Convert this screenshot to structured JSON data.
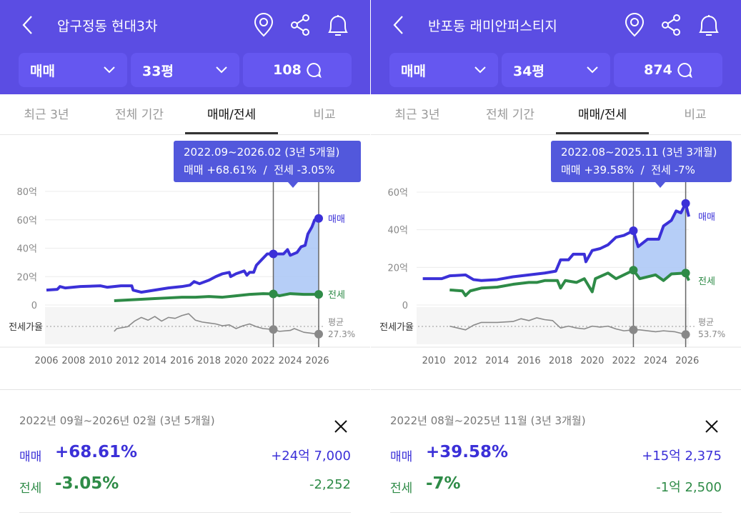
{
  "colors": {
    "header": "#5b4de3",
    "sale": "#3b30d8",
    "jeonse": "#2e8b47",
    "ratio": "#8a8a8a",
    "selection": "#a9c5f6"
  },
  "panels": [
    {
      "title": "압구정동 현대3차",
      "icons": [
        "location-pin-icon",
        "share-icon",
        "bell-icon"
      ],
      "filters": {
        "type": "매매",
        "size": "33평",
        "comments": "108"
      },
      "tabs": [
        "최근 3년",
        "전체 기간",
        "매매/전세",
        "비교"
      ],
      "active_tab": 2,
      "tooltip": {
        "range": "2022.09~2026.02 (3년 5개월)",
        "change": "매매 +68.61%  /  전세 -3.05%"
      },
      "summary": {
        "range": "2022년 09월~2026년 02월 (3년 5개월)",
        "sale_label": "매매",
        "sale_pct": "+68.61%",
        "sale_amount": "+24억 7,000",
        "jeonse_label": "전세",
        "jeonse_pct": "-3.05%",
        "jeonse_amount": "-2,252"
      },
      "chart_data": {
        "type": "line",
        "xlim": [
          2006,
          2026.1
        ],
        "ylim": [
          0,
          80
        ],
        "yticks": [
          "0",
          "20억",
          "40억",
          "60억",
          "80억"
        ],
        "yvals": [
          0,
          20,
          40,
          60,
          80
        ],
        "xticks": [
          "2006",
          "2008",
          "2010",
          "2012",
          "2014",
          "2016",
          "2018",
          "2020",
          "2022",
          "2024",
          "2026"
        ],
        "series": [
          {
            "name": "매매",
            "points": [
              [
                2006,
                10.5
              ],
              [
                2006.8,
                11
              ],
              [
                2007,
                13
              ],
              [
                2007.4,
                12
              ],
              [
                2008.5,
                13
              ],
              [
                2010,
                13.5
              ],
              [
                2010.5,
                12.5
              ],
              [
                2011,
                13
              ],
              [
                2011.5,
                13.5
              ],
              [
                2012.3,
                13.5
              ],
              [
                2012.4,
                10.5
              ],
              [
                2013,
                9
              ],
              [
                2014,
                10.5
              ],
              [
                2015,
                12
              ],
              [
                2016,
                13
              ],
              [
                2016.6,
                14
              ],
              [
                2016.9,
                16.5
              ],
              [
                2017.3,
                15
              ],
              [
                2018,
                17.5
              ],
              [
                2018.5,
                20
              ],
              [
                2019,
                22
              ],
              [
                2019.5,
                23
              ],
              [
                2019.6,
                20
              ],
              [
                2020,
                22
              ],
              [
                2020.6,
                24
              ],
              [
                2020.8,
                21
              ],
              [
                2021,
                23
              ],
              [
                2021.3,
                23
              ],
              [
                2021.5,
                28
              ],
              [
                2021.9,
                32
              ],
              [
                2022.3,
                36
              ],
              [
                2022.75,
                36
              ],
              [
                2023.5,
                36
              ],
              [
                2023.8,
                39
              ],
              [
                2024,
                35
              ],
              [
                2024.5,
                37
              ],
              [
                2024.8,
                41
              ],
              [
                2025.1,
                42
              ],
              [
                2025.3,
                50
              ],
              [
                2025.6,
                55
              ],
              [
                2025.8,
                60
              ],
              [
                2026.1,
                61
              ]
            ]
          },
          {
            "name": "전세",
            "points": [
              [
                2011,
                3
              ],
              [
                2012,
                3.5
              ],
              [
                2013,
                4
              ],
              [
                2014,
                4.5
              ],
              [
                2015,
                5
              ],
              [
                2016,
                5.5
              ],
              [
                2017,
                5.5
              ],
              [
                2018,
                6
              ],
              [
                2019,
                5.5
              ],
              [
                2020,
                6.5
              ],
              [
                2021,
                7.5
              ],
              [
                2022,
                8
              ],
              [
                2022.75,
                7.8
              ],
              [
                2023.2,
                6.5
              ],
              [
                2024,
                8
              ],
              [
                2025,
                7.5
              ],
              [
                2026.1,
                7.5
              ]
            ]
          },
          {
            "name": "전세가율",
            "average": "27.3%",
            "avg_value": 27.3,
            "points": [
              [
                2011,
                22
              ],
              [
                2011.2,
                25
              ],
              [
                2012,
                27
              ],
              [
                2012.5,
                33
              ],
              [
                2013,
                37
              ],
              [
                2013.5,
                34
              ],
              [
                2014,
                38
              ],
              [
                2014.5,
                33
              ],
              [
                2015,
                37
              ],
              [
                2015.5,
                36
              ],
              [
                2016,
                39
              ],
              [
                2016.5,
                41
              ],
              [
                2017,
                34
              ],
              [
                2017.5,
                32
              ],
              [
                2018,
                31
              ],
              [
                2018.5,
                30
              ],
              [
                2019,
                28
              ],
              [
                2019.5,
                29
              ],
              [
                2020,
                25
              ],
              [
                2020.5,
                28
              ],
              [
                2021,
                30
              ],
              [
                2021.5,
                27
              ],
              [
                2022,
                25
              ],
              [
                2022.75,
                24
              ],
              [
                2023.2,
                22
              ],
              [
                2024,
                23
              ],
              [
                2024.3,
                25
              ],
              [
                2025,
                21
              ],
              [
                2026.1,
                19
              ]
            ]
          }
        ],
        "selection": [
          2022.75,
          2026.1
        ],
        "labels": {
          "sale": "매매",
          "jeonse": "전세",
          "ratio": "전세가율",
          "avg": "평균"
        }
      }
    },
    {
      "title": "반포동 래미안퍼스티지",
      "icons": [
        "location-pin-icon",
        "share-icon",
        "bell-icon"
      ],
      "filters": {
        "type": "매매",
        "size": "34평",
        "comments": "874"
      },
      "tabs": [
        "최근 3년",
        "전체 기간",
        "매매/전세",
        "비교"
      ],
      "active_tab": 2,
      "tooltip": {
        "range": "2022.08~2025.11 (3년 3개월)",
        "change": "매매 +39.58%  /  전세 -7%"
      },
      "summary": {
        "range": "2022년 08월~2025년 11월 (3년 3개월)",
        "sale_label": "매매",
        "sale_pct": "+39.58%",
        "sale_amount": "+15억 2,375",
        "jeonse_label": "전세",
        "jeonse_pct": "-7%",
        "jeonse_amount": "-1억 2,500"
      },
      "chart_data": {
        "type": "line",
        "xlim": [
          2009,
          2026.1
        ],
        "ylim": [
          0,
          60
        ],
        "yticks": [
          "0",
          "20억",
          "40억",
          "60억"
        ],
        "yvals": [
          0,
          20,
          40,
          60
        ],
        "xticks": [
          "2010",
          "2012",
          "2014",
          "2016",
          "2018",
          "2020",
          "2022",
          "2024",
          "2026"
        ],
        "series": [
          {
            "name": "매매",
            "points": [
              [
                2009.3,
                14
              ],
              [
                2010.5,
                14
              ],
              [
                2011,
                15.5
              ],
              [
                2012,
                16
              ],
              [
                2012.5,
                13.5
              ],
              [
                2013,
                13
              ],
              [
                2014,
                13.5
              ],
              [
                2015,
                15
              ],
              [
                2016,
                16
              ],
              [
                2017,
                17
              ],
              [
                2017.7,
                18
              ],
              [
                2018,
                24
              ],
              [
                2018.5,
                24
              ],
              [
                2018.8,
                27
              ],
              [
                2019.5,
                27
              ],
              [
                2019.6,
                23
              ],
              [
                2020,
                29
              ],
              [
                2020.5,
                30
              ],
              [
                2021,
                32
              ],
              [
                2021.5,
                36
              ],
              [
                2022,
                37
              ],
              [
                2022.6,
                39.5
              ],
              [
                2022.9,
                31
              ],
              [
                2023.5,
                35
              ],
              [
                2024.2,
                35
              ],
              [
                2024.5,
                42
              ],
              [
                2025,
                45
              ],
              [
                2025.3,
                50
              ],
              [
                2025.6,
                49
              ],
              [
                2025.9,
                54
              ],
              [
                2026.1,
                47
              ]
            ]
          },
          {
            "name": "전세",
            "points": [
              [
                2011,
                8
              ],
              [
                2011.8,
                7.5
              ],
              [
                2012,
                5
              ],
              [
                2012.3,
                7.5
              ],
              [
                2013,
                9
              ],
              [
                2014,
                9.5
              ],
              [
                2015,
                11
              ],
              [
                2016,
                12
              ],
              [
                2016.5,
                12
              ],
              [
                2017,
                13
              ],
              [
                2017.8,
                13
              ],
              [
                2018,
                9
              ],
              [
                2018.3,
                13
              ],
              [
                2019,
                12
              ],
              [
                2019.5,
                14
              ],
              [
                2020,
                7
              ],
              [
                2020.2,
                14
              ],
              [
                2021,
                17
              ],
              [
                2021.5,
                14
              ],
              [
                2022,
                16
              ],
              [
                2022.6,
                18.5
              ],
              [
                2023,
                14
              ],
              [
                2024,
                16
              ],
              [
                2024.5,
                13
              ],
              [
                2025,
                16.5
              ],
              [
                2025.9,
                17
              ],
              [
                2026.1,
                13
              ]
            ]
          },
          {
            "name": "전세가율",
            "average": "53.7%",
            "avg_value": 53.7,
            "points": [
              [
                2011,
                54
              ],
              [
                2011.5,
                52
              ],
              [
                2012,
                50
              ],
              [
                2012.5,
                55
              ],
              [
                2013,
                58
              ],
              [
                2014,
                58
              ],
              [
                2015,
                59
              ],
              [
                2015.5,
                62
              ],
              [
                2016,
                60
              ],
              [
                2016.5,
                63
              ],
              [
                2017,
                61
              ],
              [
                2017.5,
                60
              ],
              [
                2018,
                52
              ],
              [
                2018.5,
                54
              ],
              [
                2019,
                52
              ],
              [
                2019.5,
                51
              ],
              [
                2020,
                54
              ],
              [
                2020.5,
                53
              ],
              [
                2021,
                54
              ],
              [
                2021.5,
                51
              ],
              [
                2022,
                49
              ],
              [
                2022.6,
                50
              ],
              [
                2023,
                50
              ],
              [
                2024,
                48
              ],
              [
                2024.5,
                49
              ],
              [
                2025.2,
                48
              ],
              [
                2025.9,
                45
              ]
            ]
          }
        ],
        "selection": [
          2022.6,
          2025.9
        ],
        "labels": {
          "sale": "매매",
          "jeonse": "전세",
          "ratio": "전세가율",
          "avg": "평균"
        }
      }
    }
  ]
}
